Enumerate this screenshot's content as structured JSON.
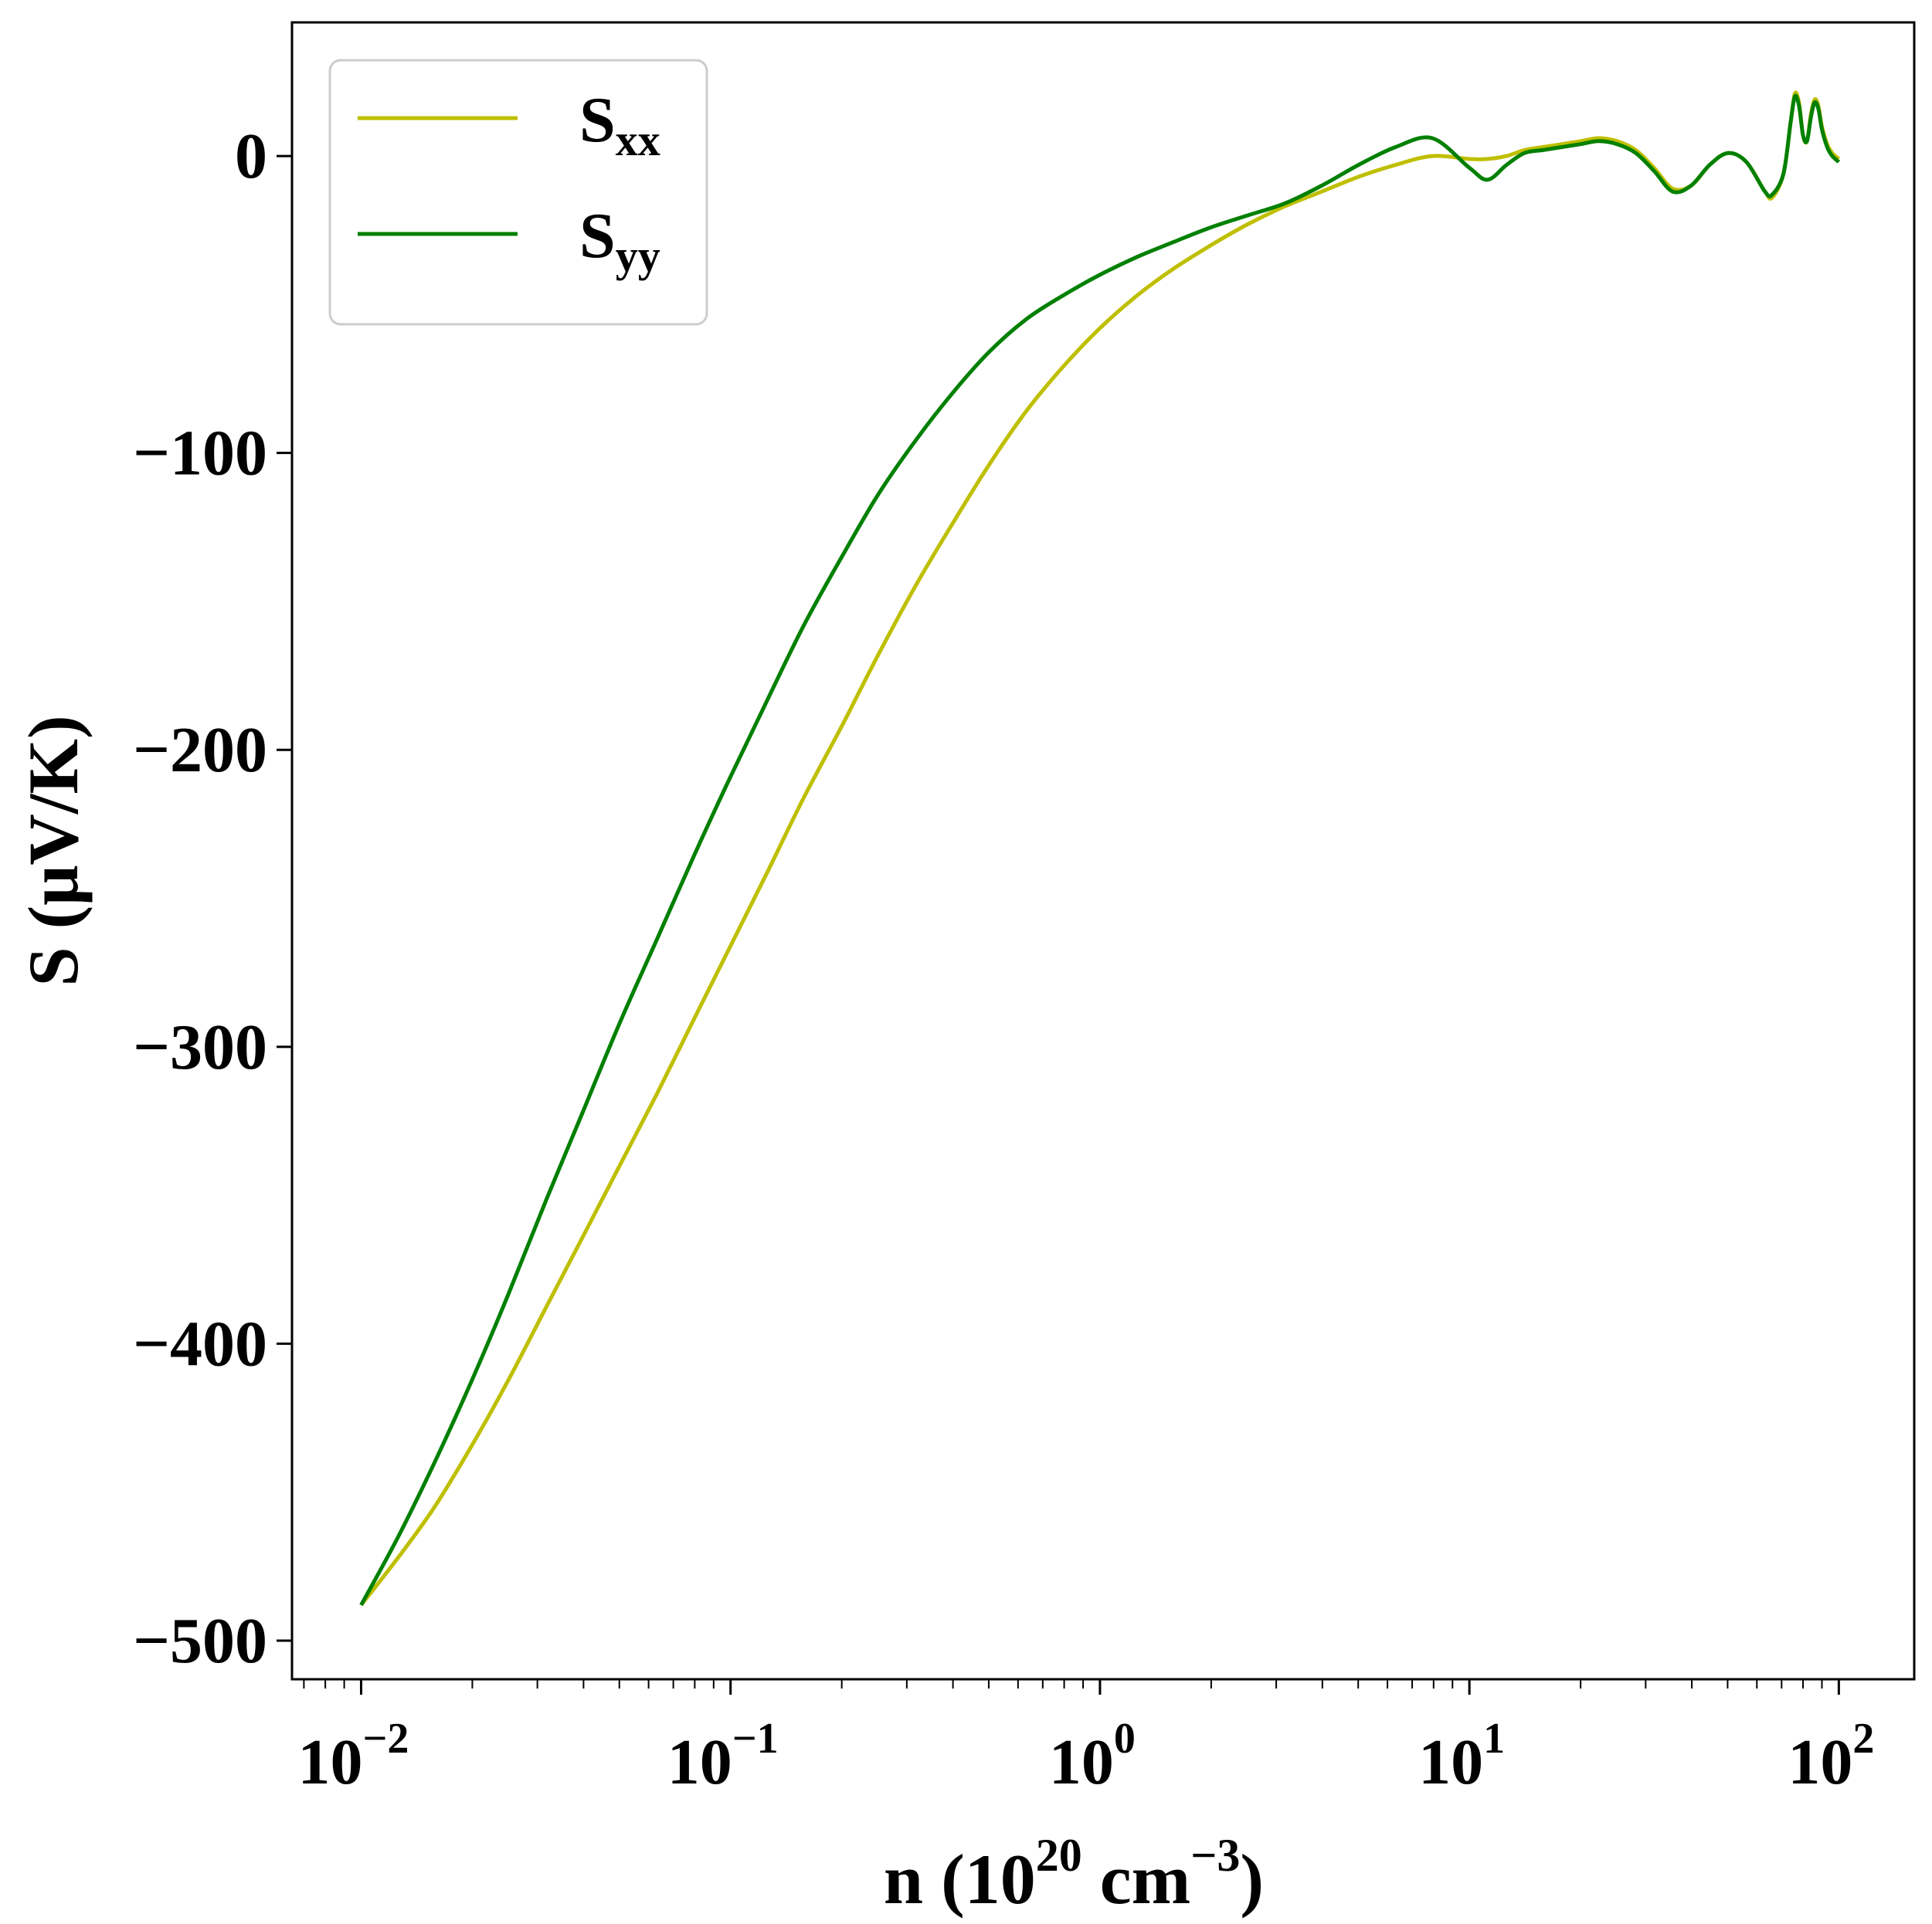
{
  "chart_data": {
    "type": "line",
    "title": "",
    "xlabel": {
      "prefix": "n (10",
      "sup1": "20",
      "middle": " cm",
      "sup2": "−3",
      "suffix": ")"
    },
    "ylabel": "S (μV/K)",
    "xscale": "log",
    "xlim": [
      0.0065,
      160
    ],
    "ylim": [
      -513,
      45
    ],
    "x_ticks": [
      {
        "value": 0.01,
        "base": "10",
        "exp": "−2"
      },
      {
        "value": 0.1,
        "base": "10",
        "exp": "−1"
      },
      {
        "value": 1,
        "base": "10",
        "exp": "0"
      },
      {
        "value": 10,
        "base": "10",
        "exp": "1"
      },
      {
        "value": 100,
        "base": "10",
        "exp": "2"
      }
    ],
    "y_ticks": [
      {
        "value": 0,
        "label": "0"
      },
      {
        "value": -100,
        "label": "−100"
      },
      {
        "value": -200,
        "label": "−200"
      },
      {
        "value": -300,
        "label": "−300"
      },
      {
        "value": -400,
        "label": "−400"
      },
      {
        "value": -500,
        "label": "−500"
      }
    ],
    "grid": false,
    "legend": {
      "placement": "top-left",
      "entries": [
        {
          "base": "S",
          "sub": "xx",
          "color": "#bfbf00"
        },
        {
          "base": "S",
          "sub": "yy",
          "color": "#008000"
        }
      ]
    },
    "series": [
      {
        "name": "Sxx",
        "color": "#bfbf00",
        "x": [
          0.01,
          0.0126,
          0.0158,
          0.02,
          0.0251,
          0.0316,
          0.0398,
          0.0501,
          0.0631,
          0.0794,
          0.1,
          0.126,
          0.158,
          0.2,
          0.251,
          0.316,
          0.398,
          0.501,
          0.631,
          0.794,
          1.0,
          1.26,
          1.58,
          2.0,
          2.51,
          3.16,
          3.98,
          5.01,
          6.31,
          7.94,
          10.0,
          11.2,
          12.6,
          14.1,
          15.8,
          17.8,
          20.0,
          22.4,
          25.1,
          28.2,
          31.6,
          35.5,
          39.8,
          44.7,
          50.1,
          56.2,
          63.1,
          66.0,
          70.8,
          74.0,
          76.0,
          78.0,
          80.0,
          82.0,
          84.0,
          86.0,
          88.0,
          90.0,
          93.0,
          96.0,
          100.0
        ],
        "y": [
          -488,
          -472,
          -455,
          -434,
          -412,
          -388,
          -364,
          -340,
          -316,
          -291,
          -266,
          -241,
          -216,
          -192,
          -168,
          -145,
          -124,
          -104,
          -86,
          -71,
          -58,
          -47,
          -38,
          -30,
          -23,
          -17,
          -12,
          -7,
          -3,
          0,
          -1,
          -1,
          0,
          2,
          3,
          4,
          5,
          6,
          5,
          2,
          -4,
          -11,
          -10,
          -3,
          1,
          -2,
          -12,
          -14,
          -6,
          11,
          21,
          18,
          7,
          5,
          14,
          19,
          17,
          10,
          4,
          1,
          -1
        ]
      },
      {
        "name": "Syy",
        "color": "#008000",
        "x": [
          0.01,
          0.0126,
          0.0158,
          0.02,
          0.0251,
          0.0316,
          0.0398,
          0.0501,
          0.0631,
          0.0794,
          0.1,
          0.126,
          0.158,
          0.2,
          0.251,
          0.316,
          0.398,
          0.501,
          0.631,
          0.794,
          1.0,
          1.26,
          1.58,
          2.0,
          2.51,
          3.16,
          3.98,
          5.01,
          6.31,
          7.94,
          10.0,
          11.2,
          12.6,
          14.1,
          15.8,
          17.8,
          20.0,
          22.4,
          25.1,
          28.2,
          31.6,
          35.5,
          39.8,
          44.7,
          50.1,
          56.2,
          63.1,
          66.0,
          70.8,
          74.0,
          76.0,
          78.0,
          80.0,
          82.0,
          84.0,
          86.0,
          88.0,
          90.0,
          93.0,
          96.0,
          100.0
        ],
        "y": [
          -488,
          -465,
          -440,
          -412,
          -383,
          -352,
          -322,
          -292,
          -264,
          -236,
          -209,
          -183,
          -158,
          -135,
          -114,
          -96,
          -80,
          -66,
          -55,
          -47,
          -40,
          -34,
          -29,
          -24,
          -20,
          -16,
          -10,
          -3,
          3,
          6,
          -4,
          -8,
          -3,
          1,
          2,
          3,
          4,
          5,
          4,
          1,
          -5,
          -12,
          -10,
          -3,
          1,
          -2,
          -12,
          -13,
          -6,
          11,
          20,
          17,
          7,
          5,
          13,
          18,
          16,
          9,
          3,
          0,
          -2
        ]
      }
    ]
  }
}
